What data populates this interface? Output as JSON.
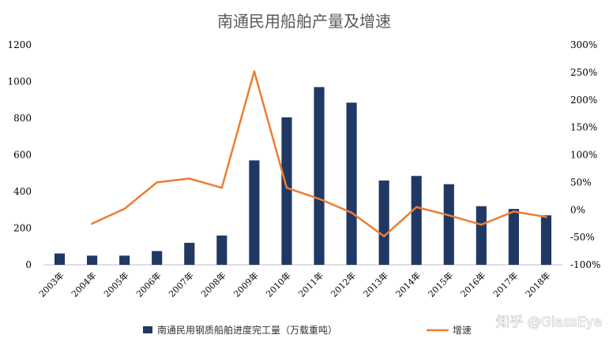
{
  "chart_data": {
    "type": "bar+line",
    "title": "南通民用船舶产量及增速",
    "categories": [
      "2003年",
      "2004年",
      "2005年",
      "2006年",
      "2007年",
      "2008年",
      "2009年",
      "2010年",
      "2011年",
      "2012年",
      "2013年",
      "2014年",
      "2015年",
      "2016年",
      "2017年",
      "2018年"
    ],
    "series": [
      {
        "name": "南通民用钢质船舶进度完工量（万载重吨）",
        "type": "bar",
        "axis": "left",
        "color": "#1f3864",
        "values": [
          62,
          50,
          50,
          75,
          120,
          160,
          570,
          805,
          970,
          885,
          460,
          485,
          440,
          320,
          305,
          270
        ]
      },
      {
        "name": "增速",
        "type": "line",
        "axis": "right",
        "color": "#ed7d31",
        "values": [
          null,
          -25,
          2,
          50,
          57,
          40,
          252,
          40,
          20,
          -5,
          -48,
          5,
          -10,
          -27,
          -3,
          -13
        ]
      }
    ],
    "y_left": {
      "min": 0,
      "max": 1200,
      "ticks": [
        "0",
        "200",
        "400",
        "600",
        "800",
        "1000",
        "1200"
      ]
    },
    "y_right": {
      "min": -100,
      "max": 300,
      "ticks": [
        "-100%",
        "-50%",
        "0%",
        "50%",
        "100%",
        "150%",
        "200%",
        "250%",
        "300%"
      ]
    },
    "grid": false,
    "legend_position": "bottom"
  },
  "watermark": "知乎 @GlassEye"
}
